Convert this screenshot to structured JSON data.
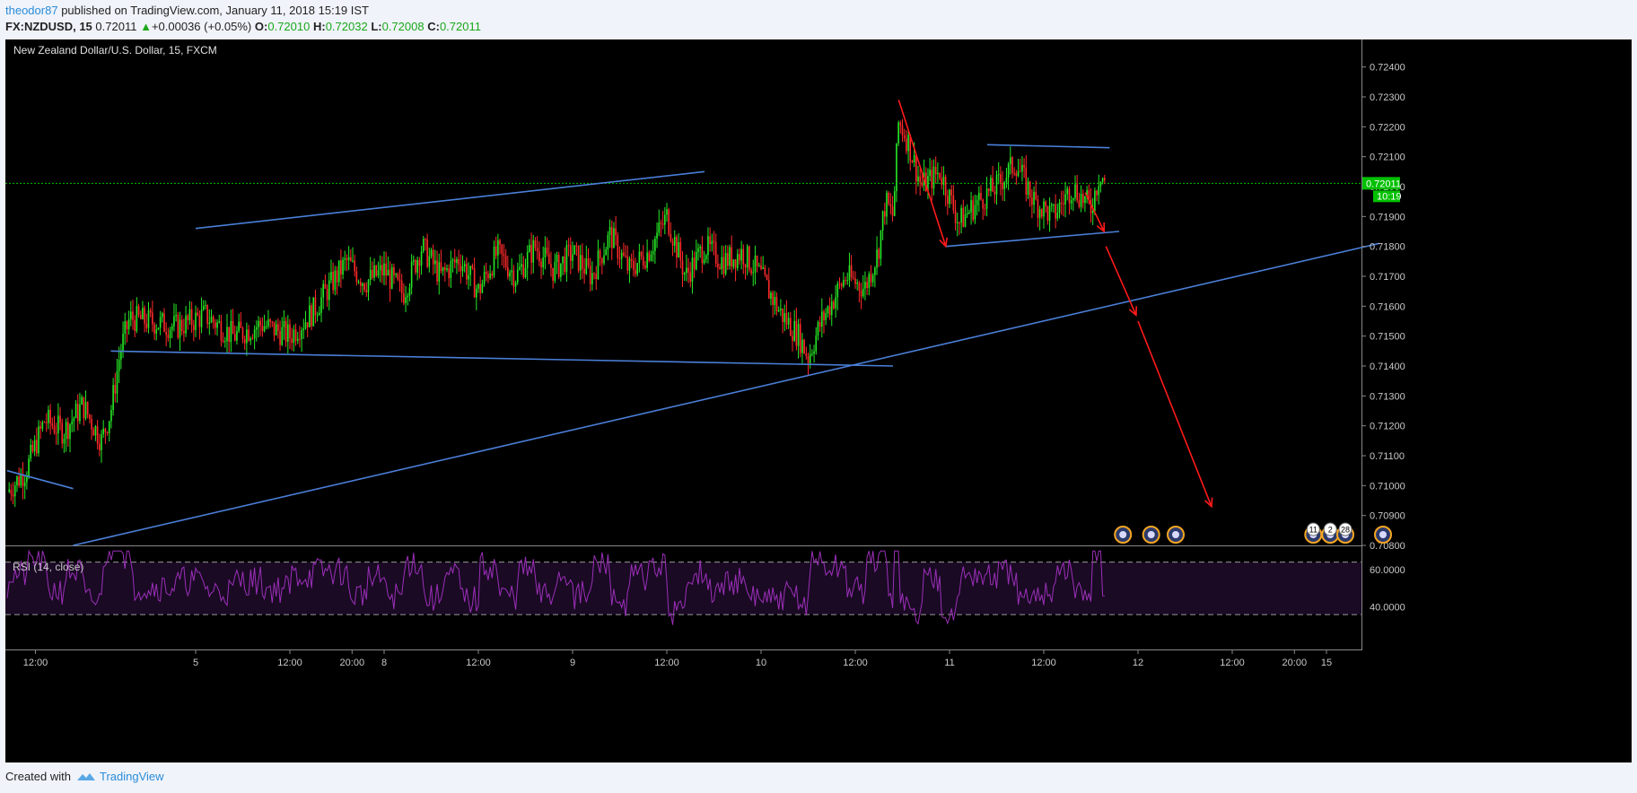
{
  "header": {
    "author": "theodor87",
    "published_text": "published on TradingView.com, January 11, 2018 15:19 IST",
    "symbol": "FX:NZDUSD, 15",
    "last": "0.72011",
    "change_arrow": "▲",
    "change": "+0.00036 (+0.05%)",
    "open_label": "O:",
    "open": "0.72010",
    "high_label": "H:",
    "high": "0.72032",
    "low_label": "L:",
    "low": "0.72008",
    "close_label": "C:",
    "close": "0.72011"
  },
  "footer": {
    "created_with": "Created with",
    "brand": "TradingView"
  },
  "chart_data": {
    "type": "candlestick",
    "title": "New Zealand Dollar/U.S. Dollar, 15, FXCM",
    "ylim": [
      0.708,
      0.7245
    ],
    "y_ticks": [
      "0.72400",
      "0.72300",
      "0.72200",
      "0.72100",
      "0.72000",
      "0.71900",
      "0.71800",
      "0.71700",
      "0.71600",
      "0.71500",
      "0.71400",
      "0.71300",
      "0.71200",
      "0.71100",
      "0.71000",
      "0.70900",
      "0.70800"
    ],
    "current_price_label": "0.72011",
    "current_price": 0.72011,
    "countdown_label": "10:19",
    "x_ticks": [
      {
        "label": "12:00",
        "t": 0.15
      },
      {
        "label": "5",
        "t": 1.0
      },
      {
        "label": "12:00",
        "t": 1.5
      },
      {
        "label": "20:00",
        "t": 1.83
      },
      {
        "label": "8",
        "t": 2.0
      },
      {
        "label": "12:00",
        "t": 2.5
      },
      {
        "label": "9",
        "t": 3.0
      },
      {
        "label": "12:00",
        "t": 3.5
      },
      {
        "label": "10",
        "t": 4.0
      },
      {
        "label": "12:00",
        "t": 4.5
      },
      {
        "label": "11",
        "t": 5.0
      },
      {
        "label": "12:00",
        "t": 5.5
      },
      {
        "label": "12",
        "t": 6.0
      },
      {
        "label": "12:00",
        "t": 6.5
      },
      {
        "label": "20:00",
        "t": 6.83
      },
      {
        "label": "15",
        "t": 7.0
      }
    ],
    "price_path": [
      [
        0.0,
        0.7098
      ],
      [
        0.1,
        0.7105
      ],
      [
        0.2,
        0.7122
      ],
      [
        0.3,
        0.7118
      ],
      [
        0.4,
        0.7127
      ],
      [
        0.5,
        0.7115
      ],
      [
        0.55,
        0.7125
      ],
      [
        0.6,
        0.7145
      ],
      [
        0.65,
        0.7156
      ],
      [
        0.75,
        0.7155
      ],
      [
        0.9,
        0.7153
      ],
      [
        1.05,
        0.7157
      ],
      [
        1.2,
        0.715
      ],
      [
        1.35,
        0.7154
      ],
      [
        1.5,
        0.715
      ],
      [
        1.62,
        0.7158
      ],
      [
        1.8,
        0.7175
      ],
      [
        1.9,
        0.7168
      ],
      [
        2.0,
        0.7172
      ],
      [
        2.1,
        0.7164
      ],
      [
        2.2,
        0.718
      ],
      [
        2.3,
        0.717
      ],
      [
        2.4,
        0.7176
      ],
      [
        2.5,
        0.7165
      ],
      [
        2.6,
        0.7178
      ],
      [
        2.7,
        0.717
      ],
      [
        2.8,
        0.718
      ],
      [
        2.9,
        0.7172
      ],
      [
        3.0,
        0.7178
      ],
      [
        3.1,
        0.717
      ],
      [
        3.2,
        0.7184
      ],
      [
        3.3,
        0.7172
      ],
      [
        3.4,
        0.7178
      ],
      [
        3.5,
        0.719
      ],
      [
        3.6,
        0.717
      ],
      [
        3.7,
        0.718
      ],
      [
        3.8,
        0.7175
      ],
      [
        3.9,
        0.7178
      ],
      [
        4.0,
        0.717
      ],
      [
        4.1,
        0.7158
      ],
      [
        4.2,
        0.715
      ],
      [
        4.25,
        0.7143
      ],
      [
        4.32,
        0.7155
      ],
      [
        4.45,
        0.717
      ],
      [
        4.55,
        0.7166
      ],
      [
        4.62,
        0.7178
      ],
      [
        4.66,
        0.7195
      ],
      [
        4.7,
        0.719
      ],
      [
        4.73,
        0.7222
      ],
      [
        4.78,
        0.7215
      ],
      [
        4.85,
        0.72
      ],
      [
        4.95,
        0.7205
      ],
      [
        5.05,
        0.7188
      ],
      [
        5.15,
        0.7195
      ],
      [
        5.25,
        0.72
      ],
      [
        5.35,
        0.7208
      ],
      [
        5.45,
        0.7195
      ],
      [
        5.55,
        0.719
      ],
      [
        5.65,
        0.72
      ],
      [
        5.75,
        0.7193
      ],
      [
        5.8,
        0.7205
      ],
      [
        5.83,
        0.72011
      ]
    ],
    "rsi": {
      "label": "RSI (14, close)",
      "ylim": [
        25,
        72
      ],
      "y_ticks": [
        "60.0000",
        "40.0000"
      ],
      "y_tick_values": [
        60,
        40
      ],
      "bands": [
        64,
        36
      ]
    },
    "trendlines": [
      {
        "color": "#4a7fd8",
        "from": [
          1.0,
          0.7186
        ],
        "to": [
          3.7,
          0.7205
        ]
      },
      {
        "color": "#4a7fd8",
        "from": [
          0.55,
          0.7145
        ],
        "to": [
          4.7,
          0.714
        ]
      },
      {
        "color": "#4a7fd8",
        "from": [
          0.35,
          0.708
        ],
        "to": [
          7.28,
          0.7181
        ]
      },
      {
        "color": "#4a7fd8",
        "from": [
          0.0,
          0.7105
        ],
        "to": [
          0.35,
          0.7099
        ]
      },
      {
        "color": "#4a7fd8",
        "from": [
          5.2,
          0.7214
        ],
        "to": [
          5.85,
          0.7213
        ]
      },
      {
        "color": "#4a7fd8",
        "from": [
          4.98,
          0.718
        ],
        "to": [
          5.9,
          0.7185
        ]
      }
    ],
    "arrows": [
      {
        "color": "#ff1a1a",
        "from": [
          4.73,
          0.7229
        ],
        "to": [
          4.98,
          0.718
        ]
      },
      {
        "color": "#ff1a1a",
        "from": [
          5.72,
          0.7198
        ],
        "to": [
          5.82,
          0.7185
        ]
      },
      {
        "color": "#ff1a1a",
        "from": [
          5.83,
          0.718
        ],
        "to": [
          5.99,
          0.7157
        ]
      },
      {
        "color": "#ff1a1a",
        "from": [
          6.0,
          0.7155
        ],
        "to": [
          6.39,
          0.7093
        ]
      }
    ],
    "event_markers": [
      {
        "t": 5.92,
        "badge": ""
      },
      {
        "t": 6.07,
        "badge": ""
      },
      {
        "t": 6.2,
        "badge": ""
      },
      {
        "t": 6.93,
        "badge": "11"
      },
      {
        "t": 7.02,
        "badge": "2"
      },
      {
        "t": 7.1,
        "badge": "28"
      },
      {
        "t": 7.3,
        "badge": ""
      }
    ],
    "colors": {
      "up": "#26e826",
      "down": "#ff2a2a",
      "rsi": "#9b2fb8",
      "rsi_band": "#1a0a24",
      "grid_line": "#00c000",
      "axis_text": "#c8c8c8"
    }
  }
}
